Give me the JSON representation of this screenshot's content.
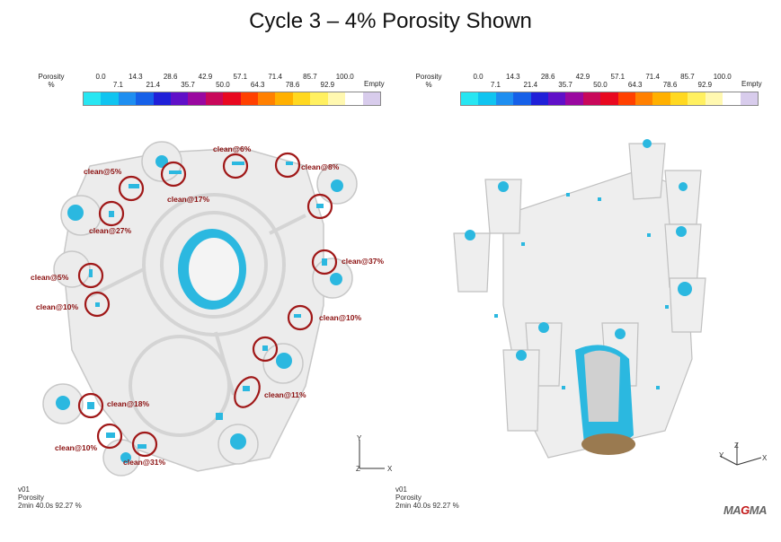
{
  "title": "Cycle 3 – 4% Porosity Shown",
  "legend": {
    "label_line1": "Porosity",
    "label_line2": "%",
    "top_ticks": [
      "0.0",
      "14.3",
      "28.6",
      "42.9",
      "57.1",
      "71.4",
      "85.7",
      "100.0"
    ],
    "bottom_ticks": [
      "7.1",
      "21.4",
      "35.7",
      "50.0",
      "64.3",
      "78.6",
      "92.9"
    ],
    "empty_label": "Empty",
    "colors": [
      "#27e6f2",
      "#10c4f0",
      "#1e8ef0",
      "#1660e8",
      "#2020d8",
      "#6010c8",
      "#9a08a0",
      "#c8085a",
      "#e80820",
      "#ff4000",
      "#ff8000",
      "#ffb000",
      "#ffd820",
      "#fff060",
      "#fff8b0",
      "#ffffff"
    ],
    "empty_color": "#d8ccec"
  },
  "left_view": {
    "footer": {
      "line1": "v01",
      "line2": "Porosity",
      "line3": "2min 40.0s 92.27 %"
    },
    "axes": {
      "y": "Y",
      "x": "X",
      "z": "Z"
    },
    "callouts": [
      "clean@6%",
      "clean@8%",
      "clean@5%",
      "clean@17%",
      "clean@27%",
      "clean@37%",
      "clean@5%",
      "clean@10%",
      "clean@10%",
      "clean@11%",
      "clean@18%",
      "clean@10%",
      "clean@31%"
    ]
  },
  "right_view": {
    "footer": {
      "line1": "v01",
      "line2": "Porosity",
      "line3": "2min 40.0s 92.27 %"
    },
    "axes": {
      "y": "Y",
      "x": "X",
      "z": "Z"
    }
  },
  "logo": {
    "text_a": "MA",
    "text_b": "G",
    "text_c": "MA"
  },
  "colors": {
    "porosity": "#2bb8e0",
    "ring": "#a01818",
    "casting": "#ececec",
    "casting_edge": "#c8c8c8"
  }
}
